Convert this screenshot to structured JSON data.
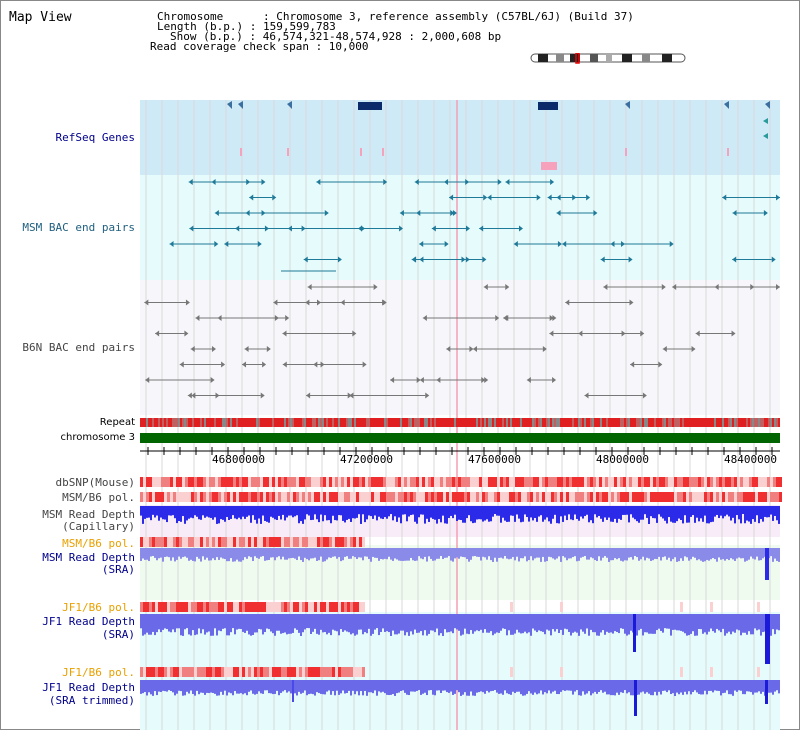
{
  "title": "Map View",
  "header": {
    "line1": "Chromosome      : Chromosome 3, reference assembly (C57BL/6J) (Build 37)",
    "line2": "Length (b.p.) : 159,599,783",
    "line3": "Show (b.p.) : 46,574,321-48,574,928 : 2,000,608 bp",
    "line4": "Read coverage check span : 10,000"
  },
  "tracks": {
    "refseq": "RefSeq Genes",
    "msm_bac": "MSM BAC end pairs",
    "b6n_bac": "B6N BAC end pairs",
    "repeat": "Repeat",
    "chromosome": "chromosome 3",
    "dbsnp": "dbSNP(Mouse)",
    "msm_b6_pol": "MSM/B6 pol.",
    "msm_depth_cap_1": "MSM Read Depth",
    "msm_depth_cap_2": "(Capillary)",
    "msm_b6_pol_2": "MSM/B6 pol.",
    "msm_depth_sra_1": "MSM Read Depth",
    "msm_depth_sra_2": "(SRA)",
    "jf1_b6_pol": "JF1/B6 pol.",
    "jf1_depth_sra_1": "JF1 Read Depth",
    "jf1_depth_sra_2": "(SRA)",
    "jf1_b6_pol_2": "JF1/B6 pol.",
    "jf1_depth_trim_1": "JF1 Read Depth",
    "jf1_depth_trim_2": "(SRA trimmed)"
  },
  "axis": {
    "ticks": [
      "46800000",
      "47200000",
      "47600000",
      "48000000",
      "48400000"
    ]
  },
  "colors": {
    "refseq_bg": "#cfeaf7",
    "msm_bg": "#e6fbfb",
    "chromosome_bar": "#006400",
    "depth_blue": "#3333ee",
    "pol_red": "#ee3333"
  }
}
